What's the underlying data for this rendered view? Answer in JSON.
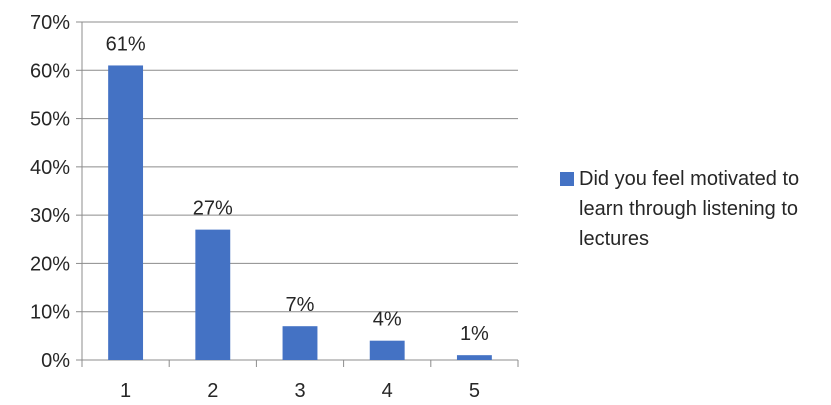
{
  "chart_data": {
    "type": "bar",
    "categories": [
      "1",
      "2",
      "3",
      "4",
      "5"
    ],
    "series": [
      {
        "name": "Did you feel motivated to learn through listening to lectures",
        "values": [
          61,
          27,
          7,
          4,
          1
        ],
        "color": "#4472C4"
      }
    ],
    "data_labels": [
      "61%",
      "27%",
      "7%",
      "4%",
      "1%"
    ],
    "ylim": [
      0,
      70
    ],
    "y_ticks": [
      0,
      10,
      20,
      30,
      40,
      50,
      60,
      70
    ],
    "y_tick_labels": [
      "0%",
      "10%",
      "20%",
      "30%",
      "40%",
      "50%",
      "60%",
      "70%"
    ],
    "grid": true,
    "legend_position": "right",
    "title": "",
    "xlabel": "",
    "ylabel": ""
  },
  "colors": {
    "bar": "#4472C4",
    "gridline": "#8c8c8c",
    "axis": "#8c8c8c",
    "text": "#262626"
  }
}
